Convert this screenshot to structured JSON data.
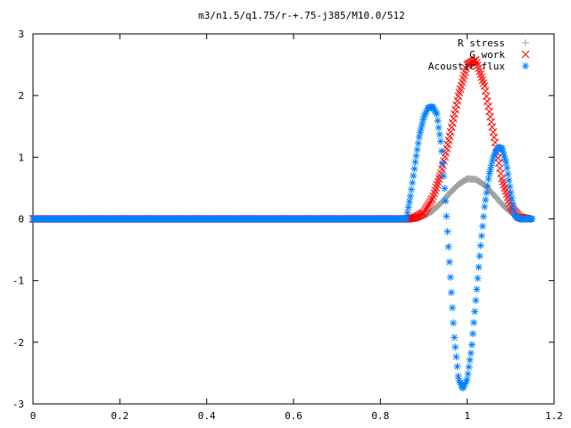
{
  "chart_data": {
    "type": "scatter",
    "title": "m3/n1.5/q1.75/r-+.75-j385/M10.0/512",
    "xlabel": "",
    "ylabel": "",
    "xlim": [
      0,
      1.2
    ],
    "ylim": [
      -3,
      3
    ],
    "xticks": [
      "0",
      "0.2",
      "0.4",
      "0.6",
      "0.8",
      "1",
      "1.2"
    ],
    "yticks": [
      "-3",
      "-2",
      "-1",
      "0",
      "1",
      "2",
      "3"
    ],
    "legend_position": "top-right",
    "grid": false,
    "series": [
      {
        "name": "R stress",
        "marker": "+",
        "color": "#a0a0a0",
        "x": [
          0.86,
          0.88,
          0.9,
          0.92,
          0.94,
          0.96,
          0.98,
          1.0,
          1.02,
          1.04,
          1.06,
          1.08,
          1.1,
          1.12,
          1.14
        ],
        "y": [
          0.0,
          0.01,
          0.05,
          0.13,
          0.26,
          0.42,
          0.56,
          0.65,
          0.64,
          0.55,
          0.4,
          0.24,
          0.11,
          0.03,
          0.0
        ]
      },
      {
        "name": "G work",
        "marker": "x",
        "color": "#ff0000",
        "x": [
          0.86,
          0.88,
          0.9,
          0.92,
          0.94,
          0.96,
          0.98,
          1.0,
          1.02,
          1.04,
          1.06,
          1.08,
          1.1,
          1.12,
          1.14
        ],
        "y": [
          0.0,
          0.02,
          0.1,
          0.33,
          0.75,
          1.35,
          2.0,
          2.5,
          2.58,
          2.15,
          1.4,
          0.65,
          0.2,
          0.03,
          0.0
        ]
      },
      {
        "name": "Acoustic flux",
        "marker": "*",
        "color": "#0080ff",
        "x": [
          0.86,
          0.87,
          0.88,
          0.89,
          0.9,
          0.91,
          0.92,
          0.93,
          0.94,
          0.95,
          0.96,
          0.97,
          0.98,
          0.99,
          1.0,
          1.01,
          1.02,
          1.03,
          1.04,
          1.05,
          1.06,
          1.07,
          1.08,
          1.09,
          1.1,
          1.11,
          1.12,
          1.13,
          1.14,
          1.15
        ],
        "y": [
          0.0,
          0.4,
          0.9,
          1.35,
          1.65,
          1.8,
          1.82,
          1.7,
          1.2,
          0.3,
          -0.8,
          -1.9,
          -2.6,
          -2.75,
          -2.6,
          -2.1,
          -1.3,
          -0.5,
          0.2,
          0.7,
          1.0,
          1.15,
          1.15,
          0.9,
          0.45,
          0.05,
          0.0,
          0.0,
          0.0,
          0.0
        ]
      }
    ]
  }
}
